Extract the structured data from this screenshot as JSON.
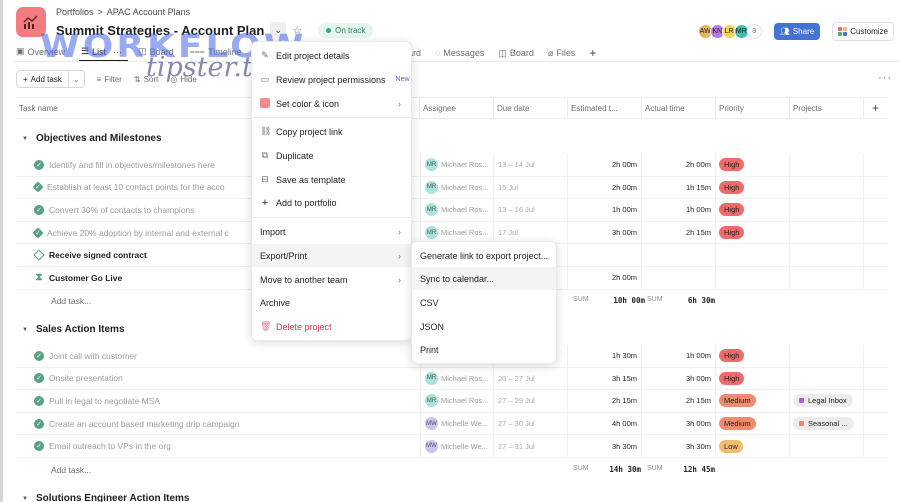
{
  "header": {
    "breadcrumb": [
      "Portfolios",
      ">",
      "APAC Account Plans"
    ],
    "title": "Summit Strategies - Account Plan",
    "status": "On track",
    "project_color": "#f27c7f",
    "avatars": [
      {
        "initials": "AW",
        "color": "#e8b15c"
      },
      {
        "initials": "KN",
        "color": "#b47be0"
      },
      {
        "initials": "LR",
        "color": "#f5d35a"
      },
      {
        "initials": "MR",
        "color": "#3bbfb0"
      }
    ],
    "member_count": "8",
    "share_label": "Share",
    "customize_label": "Customize"
  },
  "tabs": [
    {
      "label": "Overview",
      "icon": "overview-icon"
    },
    {
      "label": "List",
      "icon": "list-icon",
      "active": true
    },
    {
      "label": "Board",
      "icon": "board-icon"
    },
    {
      "label": "Timeline",
      "icon": "timeline-icon"
    }
  ],
  "tabs_right": [
    {
      "label": "ard",
      "icon": ""
    },
    {
      "label": "Messages",
      "icon": "message-icon"
    },
    {
      "label": "Board",
      "icon": "board-icon"
    },
    {
      "label": "Files",
      "icon": "attachment-icon"
    }
  ],
  "toolbar": {
    "add_task": "Add task",
    "filter": "Filter",
    "sort": "Sort",
    "hide": "Hide"
  },
  "columns": [
    "Task name",
    "Assignee",
    "Due date",
    "Estimated t...",
    "Actual time",
    "Priority",
    "Projects"
  ],
  "sections": [
    {
      "title": "Objectives and Milestones",
      "tasks": [
        {
          "name": "Identify and fill in objectives/milestones here",
          "status": "done",
          "assignee": "Michael Ros...",
          "initials": "MR",
          "due": "13 – 14 Jul",
          "est": "2h 00m",
          "act": "2h 00m",
          "priority": "High"
        },
        {
          "name": "Establish at least 10 contact points for the acco",
          "status": "milestone-done",
          "assignee": "Michael Ros...",
          "initials": "MR",
          "due": "15 Jul",
          "est": "2h 00m",
          "act": "1h 15m",
          "priority": "High"
        },
        {
          "name": "Convert 30% of contacts to champions",
          "status": "done",
          "assignee": "Michael Ros...",
          "initials": "MR",
          "due": "13 – 16 Jul",
          "est": "1h 00m",
          "act": "1h 00m",
          "priority": "High"
        },
        {
          "name": "Achieve 20% adoption by internal and external c",
          "status": "milestone-done",
          "assignee": "Michael Ros...",
          "initials": "MR",
          "due": "17 Jul",
          "est": "3h 00m",
          "act": "2h 15m",
          "priority": "High"
        },
        {
          "name": "Receive signed contract",
          "status": "milestone-open",
          "assignee": "",
          "due": "",
          "est": "",
          "act": "",
          "priority": ""
        },
        {
          "name": "Customer Go Live",
          "status": "approval",
          "assignee": "",
          "due": "",
          "est": "2h 00m",
          "act": "",
          "priority": ""
        }
      ],
      "add_task": "Add task...",
      "sum_label": "SUM",
      "sum_est": "10h 00m",
      "sum_act": "6h 30m"
    },
    {
      "title": "Sales Action Items",
      "tasks": [
        {
          "name": "Joint call with customer",
          "status": "done",
          "assignee": "",
          "due": "",
          "est": "1h 30m",
          "act": "1h 00m",
          "priority": "High"
        },
        {
          "name": "Onsite presentation",
          "status": "done",
          "assignee": "Michael Ros...",
          "initials": "MR",
          "due": "20 – 27 Jul",
          "est": "3h 15m",
          "act": "3h 00m",
          "priority": "High"
        },
        {
          "name": "Pull in legal to negotiate MSA",
          "status": "done",
          "assignee": "Michael Ros...",
          "initials": "MR",
          "due": "27 – 29 Jul",
          "est": "2h 15m",
          "act": "2h 15m",
          "priority": "Medium",
          "project": "Legal Inbox",
          "project_color": "#b35ad6"
        },
        {
          "name": "Create an account based marketing drip campaign",
          "status": "done",
          "assignee": "Michelle We...",
          "initials": "MW",
          "due": "27 – 30 Jul",
          "est": "4h 00m",
          "act": "3h 00m",
          "priority": "Medium",
          "project": "Seasonal ...",
          "project_color": "#f0876a"
        },
        {
          "name": "Email outreach to VPs in the org",
          "status": "done",
          "assignee": "Michelle We...",
          "initials": "MW",
          "due": "27 – 31 Jul",
          "est": "3h 30m",
          "act": "3h 30m",
          "priority": "Low"
        }
      ],
      "add_task": "Add task...",
      "sum_label": "SUM",
      "sum_est": "14h 30m",
      "sum_act": "12h 45m"
    },
    {
      "title": "Solutions Engineer Action Items"
    }
  ],
  "priority_colors": {
    "High": "#f06a6a",
    "Medium": "#ec8d71",
    "Low": "#f1bd6c"
  },
  "menu": {
    "items": [
      {
        "label": "Edit project details",
        "icon": "pencil-icon"
      },
      {
        "label": "Review project permissions",
        "icon": "permissions-icon",
        "badge": "New"
      },
      {
        "label": "Set color & icon",
        "icon": "color-swatch-icon",
        "submenu": true
      },
      {
        "label": "Copy project link",
        "icon": "link-icon"
      },
      {
        "label": "Duplicate",
        "icon": "duplicate-icon"
      },
      {
        "label": "Save as template",
        "icon": "template-icon"
      },
      {
        "label": "Add to portfolio",
        "icon": "plus-icon"
      },
      {
        "label": "Import",
        "submenu": true
      },
      {
        "label": "Export/Print",
        "submenu": true,
        "hover": true
      },
      {
        "label": "Move to another team",
        "submenu": true
      },
      {
        "label": "Archive"
      },
      {
        "label": "Delete project",
        "icon": "trash-icon",
        "danger": true
      }
    ]
  },
  "submenu": {
    "items": [
      {
        "label": "Generate link to export project..."
      },
      {
        "label": "Sync to calendar...",
        "hover": true
      },
      {
        "label": "CSV"
      },
      {
        "label": "JSON"
      },
      {
        "label": "Print"
      }
    ]
  },
  "watermark": {
    "line1": "WORKFLOW",
    "line2": "tipster.top"
  }
}
